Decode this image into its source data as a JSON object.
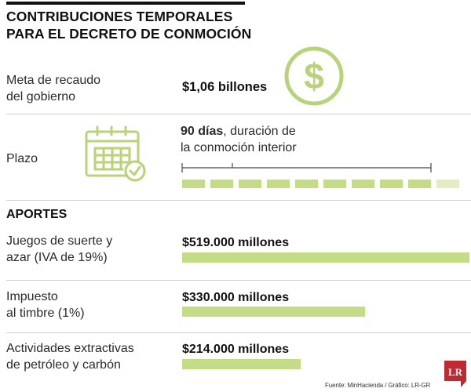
{
  "title_lines": [
    "CONTRIBUCIONES TEMPORALES",
    "PARA EL DECRETO DE CONMOCIÓN"
  ],
  "meta": {
    "label_lines": [
      "Meta de recaudo",
      "del gobierno"
    ],
    "value": "$1,06 billones"
  },
  "plazo": {
    "label": "Plazo",
    "value_bold": "90 días",
    "value_rest": ", duración de",
    "value_line2": "la conmoción interior",
    "segments_total": 10,
    "segments_filled": 9
  },
  "aportes": {
    "heading": "APORTES",
    "items": [
      {
        "label_lines": [
          "Juegos de suerte y",
          "azar (IVA de 19%)"
        ],
        "value_text": "$519.000 millones"
      },
      {
        "label_lines": [
          "Impuesto",
          "al timbre (1%)"
        ],
        "value_text": "$330.000 millones"
      },
      {
        "label_lines": [
          "Actividades extractivas",
          "de petróleo y carbón"
        ],
        "value_text": "$214.000 millones"
      }
    ]
  },
  "chart_data": {
    "type": "bar",
    "categories": [
      "Juegos de suerte y azar (IVA de 19%)",
      "Impuesto al timbre (1%)",
      "Actividades extractivas de petróleo y carbón"
    ],
    "values": [
      519000,
      330000,
      214000
    ],
    "unit": "millones",
    "ylim": [
      0,
      519000
    ]
  },
  "source": "Fuente: MinHacienda / Gráfico: LR-GR",
  "logo_text": "LR",
  "colors": {
    "accent": "#c5dc87",
    "accent_light": "#e3edc3",
    "icon": "#b9d37a",
    "logo": "#c0292f"
  },
  "icons": {
    "money": "dollar-icon",
    "calendar": "calendar-check-icon"
  }
}
